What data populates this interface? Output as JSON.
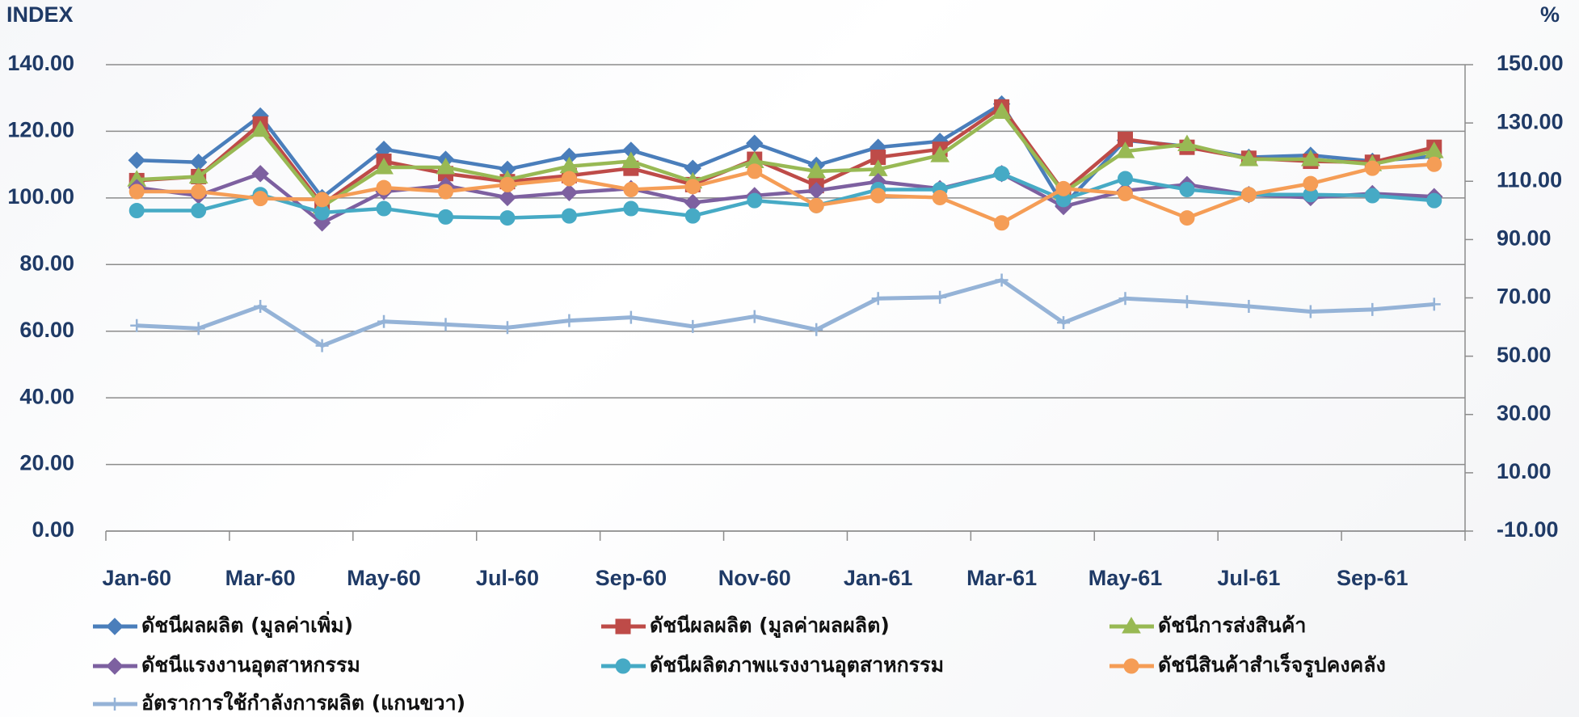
{
  "chart_data": {
    "type": "line",
    "y_label": "INDEX",
    "y2_label": "%",
    "categories": [
      "Jan-60",
      null,
      "Mar-60",
      null,
      "May-60",
      null,
      "Jul-60",
      null,
      "Sep-60",
      null,
      "Nov-60",
      null,
      "Jan-61",
      null,
      "Mar-61",
      null,
      "May-61",
      null,
      "Jul-61",
      null,
      "Sep-61",
      null
    ],
    "ylim": [
      0,
      140
    ],
    "yticks": [
      {
        "value": 0,
        "label": "0.00"
      },
      {
        "value": 20,
        "label": "20.00"
      },
      {
        "value": 40,
        "label": "40.00"
      },
      {
        "value": 60,
        "label": "60.00"
      },
      {
        "value": 80,
        "label": "80.00"
      },
      {
        "value": 100,
        "label": "100.00"
      },
      {
        "value": 120,
        "label": "120.00"
      },
      {
        "value": 140,
        "label": "140.00"
      }
    ],
    "y2lim": [
      -10,
      150
    ],
    "y2ticks": [
      {
        "value": -10,
        "label": "-10.00"
      },
      {
        "value": 10,
        "label": "10.00"
      },
      {
        "value": 30,
        "label": "30.00"
      },
      {
        "value": 50,
        "label": "50.00"
      },
      {
        "value": 70,
        "label": "70.00"
      },
      {
        "value": 90,
        "label": "90.00"
      },
      {
        "value": 110,
        "label": "110.00"
      },
      {
        "value": 130,
        "label": "130.00"
      },
      {
        "value": 150,
        "label": "150.00"
      }
    ],
    "grid": true,
    "legend": "bottom",
    "series": [
      {
        "name": "ดัชนีผลผลิต (มูลค่าเพิ่ม)",
        "color": "#4a7ebb",
        "marker": "diamond",
        "values": [
          111.3,
          110.7,
          124.6,
          100.1,
          114.6,
          111.6,
          108.6,
          112.5,
          114.3,
          108.9,
          116.4,
          109.8,
          115.2,
          117.0,
          128.2,
          97.7,
          117.3,
          115.5,
          112.2,
          112.8,
          111.0,
          112.5
        ]
      },
      {
        "name": "ดัชนีผลผลิต (มูลค่าผลผลิต)",
        "color": "#be4b48",
        "marker": "square",
        "values": [
          105.2,
          106.4,
          122.2,
          98.0,
          111.0,
          107.3,
          104.9,
          106.7,
          108.9,
          104.0,
          111.6,
          103.7,
          112.2,
          114.6,
          127.3,
          101.9,
          117.6,
          115.2,
          111.9,
          111.0,
          110.7,
          115.2
        ]
      },
      {
        "name": "ดัชนีการส่งสินค้า",
        "color": "#98b954",
        "marker": "triangle",
        "values": [
          105.5,
          106.4,
          120.4,
          97.4,
          109.2,
          109.2,
          105.5,
          109.5,
          111.0,
          104.9,
          111.0,
          108.0,
          108.6,
          112.8,
          125.8,
          101.6,
          114.0,
          116.1,
          111.6,
          111.6,
          110.1,
          114.0
        ]
      },
      {
        "name": "ดัชนีแรงงานอุตสาหกรรม",
        "color": "#7d60a0",
        "marker": "diamond",
        "values": [
          103.1,
          100.7,
          107.3,
          92.5,
          101.9,
          103.7,
          100.1,
          101.6,
          102.8,
          98.6,
          100.7,
          102.2,
          104.9,
          102.8,
          107.3,
          97.4,
          102.2,
          104.0,
          101.0,
          100.1,
          101.3,
          100.4
        ]
      },
      {
        "name": "ดัชนีผลิตภาพแรงงานอุตสาหกรรม",
        "color": "#46aac5",
        "marker": "circle",
        "values": [
          96.2,
          96.2,
          101.0,
          95.6,
          96.8,
          94.3,
          94.0,
          94.6,
          96.8,
          94.6,
          99.2,
          97.7,
          102.5,
          102.5,
          107.3,
          99.5,
          105.8,
          102.5,
          101.0,
          101.0,
          100.7,
          99.2
        ]
      },
      {
        "name": "ดัชนีสินค้าสำเร็จรูปคงคลัง",
        "color": "#f59d56",
        "marker": "circle",
        "values": [
          101.9,
          101.9,
          99.8,
          99.5,
          103.1,
          101.9,
          104.0,
          105.8,
          102.5,
          103.4,
          108.0,
          97.7,
          100.7,
          100.1,
          92.5,
          102.8,
          101.3,
          94.0,
          101.0,
          104.3,
          108.9,
          110.1
        ]
      },
      {
        "name": "อัตราการใช้กำลังการผลิต (แกนขวา)",
        "color": "#95b3d7",
        "marker": "plus",
        "axis": "y2",
        "values": [
          60.5,
          59.5,
          67.1,
          53.6,
          61.9,
          60.9,
          59.8,
          62.2,
          63.3,
          60.2,
          63.6,
          59.1,
          69.8,
          70.2,
          76.1,
          61.5,
          69.8,
          68.7,
          67.1,
          65.3,
          66.0,
          67.8
        ]
      }
    ]
  }
}
